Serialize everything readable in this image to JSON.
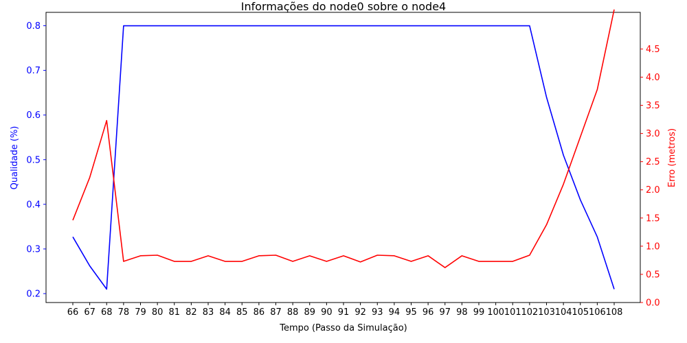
{
  "chart_data": {
    "type": "line",
    "title": "Informações do node0 sobre o node4",
    "xlabel": "Tempo (Passo da Simulação)",
    "categories": [
      "66",
      "67",
      "68",
      "78",
      "79",
      "80",
      "81",
      "82",
      "83",
      "84",
      "85",
      "86",
      "87",
      "88",
      "89",
      "90",
      "91",
      "92",
      "93",
      "94",
      "95",
      "96",
      "97",
      "98",
      "99",
      "100",
      "101",
      "102",
      "103",
      "104",
      "105",
      "106",
      "108"
    ],
    "left_axis": {
      "label": "Qualidade (%)",
      "color": "#0000ff",
      "ylim": [
        0.18,
        0.83
      ],
      "ticks": [
        "0.2",
        "0.3",
        "0.4",
        "0.5",
        "0.6",
        "0.7",
        "0.8"
      ]
    },
    "right_axis": {
      "label": "Erro (metros)",
      "color": "#ff0000",
      "ylim": [
        0.0,
        5.15
      ],
      "ticks": [
        "0.0",
        "0.5",
        "1.0",
        "1.5",
        "2.0",
        "2.5",
        "3.0",
        "3.5",
        "4.0",
        "4.5"
      ]
    },
    "series": [
      {
        "axis": "left",
        "color": "#0000ff",
        "values": [
          0.327,
          0.262,
          0.21,
          0.8,
          0.8,
          0.8,
          0.8,
          0.8,
          0.8,
          0.8,
          0.8,
          0.8,
          0.8,
          0.8,
          0.8,
          0.8,
          0.8,
          0.8,
          0.8,
          0.8,
          0.8,
          0.8,
          0.8,
          0.8,
          0.8,
          0.8,
          0.8,
          0.8,
          0.64,
          0.51,
          0.41,
          0.327,
          0.21
        ]
      },
      {
        "axis": "right",
        "color": "#ff0000",
        "values": [
          1.46,
          2.22,
          3.23,
          0.73,
          0.83,
          0.84,
          0.73,
          0.73,
          0.83,
          0.73,
          0.73,
          0.83,
          0.84,
          0.73,
          0.83,
          0.73,
          0.83,
          0.72,
          0.84,
          0.83,
          0.73,
          0.83,
          0.62,
          0.83,
          0.73,
          0.73,
          0.73,
          0.84,
          1.38,
          2.1,
          2.94,
          3.78,
          5.2
        ]
      }
    ]
  }
}
